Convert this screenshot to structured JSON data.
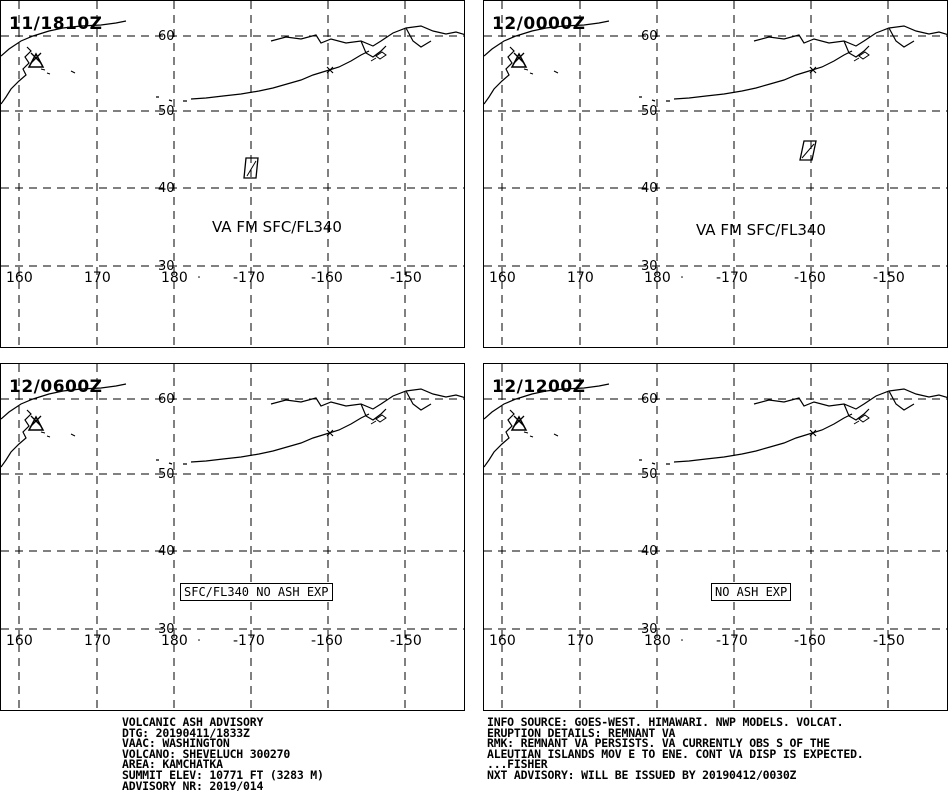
{
  "panels": [
    {
      "time": "11/1810Z",
      "va_label": "VA FM SFC/FL340",
      "box_label": ""
    },
    {
      "time": "12/0000Z",
      "va_label": "VA FM SFC/FL340",
      "box_label": ""
    },
    {
      "time": "12/0600Z",
      "va_label": "",
      "box_label": "SFC/FL340 NO ASH EXP"
    },
    {
      "time": "12/1200Z",
      "va_label": "",
      "box_label": "NO ASH EXP"
    }
  ],
  "map": {
    "lat_labels": [
      "60",
      "50",
      "40",
      "30"
    ],
    "lon_labels": [
      "160",
      "170",
      "180",
      "-170",
      "-160",
      "-150"
    ]
  },
  "advisory_left": {
    "line1": "VOLCANIC ASH ADVISORY",
    "line2": "DTG: 20190411/1833Z",
    "line3": "VAAC: WASHINGTON",
    "line4": "VOLCANO: SHEVELUCH 300270",
    "line5": "AREA: KAMCHATKA",
    "line6": "SUMMIT ELEV: 10771 FT (3283 M)",
    "line7": "ADVISORY NR: 2019/014"
  },
  "advisory_right": {
    "line1": "INFO SOURCE: GOES-WEST. HIMAWARI. NWP MODELS. VOLCAT.",
    "line2": "ERUPTION DETAILS: REMNANT VA",
    "line3": "RMK: REMNANT VA PERSISTS. VA CURRENTLY OBS S OF THE",
    "line4": "ALEUTIAN ISLANDS MOV E TO ENE. CONT VA DISP IS EXPECTED.",
    "line5": "...FISHER",
    "line6": "NXT ADVISORY: WILL BE ISSUED BY 20190412/0030Z"
  }
}
